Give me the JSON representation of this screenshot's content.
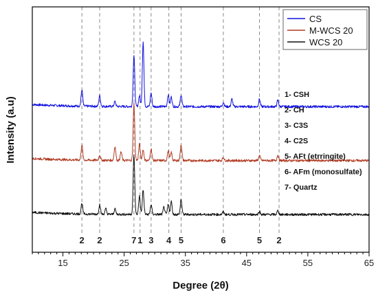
{
  "chart_data": {
    "type": "line",
    "xlabel": "Degree (2θ)",
    "ylabel": "Intensity (a.u)",
    "xlim": [
      10,
      65
    ],
    "xticks": [
      15,
      25,
      35,
      45,
      55,
      65
    ],
    "y_ticks_shown": false,
    "grid": false,
    "legend_position": "top-right",
    "series": [
      {
        "name": "CS",
        "color": "#1010e0",
        "offset": 2.0,
        "peaks": [
          [
            18.1,
            0.3
          ],
          [
            21.0,
            0.2
          ],
          [
            23.5,
            0.09
          ],
          [
            26.6,
            0.95
          ],
          [
            27.5,
            0.2
          ],
          [
            28.1,
            1.2
          ],
          [
            29.4,
            0.25
          ],
          [
            32.2,
            0.22
          ],
          [
            32.7,
            0.18
          ],
          [
            34.3,
            0.22
          ],
          [
            41.2,
            0.08
          ],
          [
            42.6,
            0.14
          ],
          [
            47.1,
            0.14
          ],
          [
            50.1,
            0.12
          ]
        ]
      },
      {
        "name": "M-WCS 20",
        "color": "#b03a22",
        "offset": 1.0,
        "peaks": [
          [
            18.1,
            0.28
          ],
          [
            21.0,
            0.1
          ],
          [
            23.5,
            0.26
          ],
          [
            24.5,
            0.16
          ],
          [
            26.6,
            1.05
          ],
          [
            27.5,
            0.3
          ],
          [
            28.1,
            0.2
          ],
          [
            29.4,
            0.22
          ],
          [
            32.2,
            0.18
          ],
          [
            32.7,
            0.15
          ],
          [
            34.3,
            0.3
          ],
          [
            41.2,
            0.06
          ],
          [
            47.1,
            0.1
          ],
          [
            50.1,
            0.1
          ]
        ]
      },
      {
        "name": "WCS 20",
        "color": "#111111",
        "offset": 0.0,
        "peaks": [
          [
            18.1,
            0.2
          ],
          [
            21.0,
            0.18
          ],
          [
            22.0,
            0.1
          ],
          [
            23.5,
            0.1
          ],
          [
            26.6,
            1.1
          ],
          [
            27.5,
            0.34
          ],
          [
            28.1,
            0.45
          ],
          [
            29.4,
            0.18
          ],
          [
            31.5,
            0.14
          ],
          [
            32.2,
            0.18
          ],
          [
            32.7,
            0.24
          ],
          [
            34.3,
            0.28
          ],
          [
            41.2,
            0.05
          ],
          [
            47.1,
            0.06
          ],
          [
            50.1,
            0.07
          ]
        ]
      }
    ],
    "reference_lines": [
      {
        "x": 18.1,
        "label": "2"
      },
      {
        "x": 21.0,
        "label": "2"
      },
      {
        "x": 26.6,
        "label": "7"
      },
      {
        "x": 27.6,
        "label": "1"
      },
      {
        "x": 29.4,
        "label": "3"
      },
      {
        "x": 32.3,
        "label": "4"
      },
      {
        "x": 34.3,
        "label": "5"
      },
      {
        "x": 41.2,
        "label": "6"
      },
      {
        "x": 47.1,
        "label": "5"
      },
      {
        "x": 50.3,
        "label": "2"
      }
    ],
    "phase_legend": [
      "1- CSH",
      "2- CH",
      "3- C3S",
      "4- C2S",
      "5- AFt (etrringite)",
      "6- AFm (monosulfate)",
      "7- Quartz"
    ]
  }
}
